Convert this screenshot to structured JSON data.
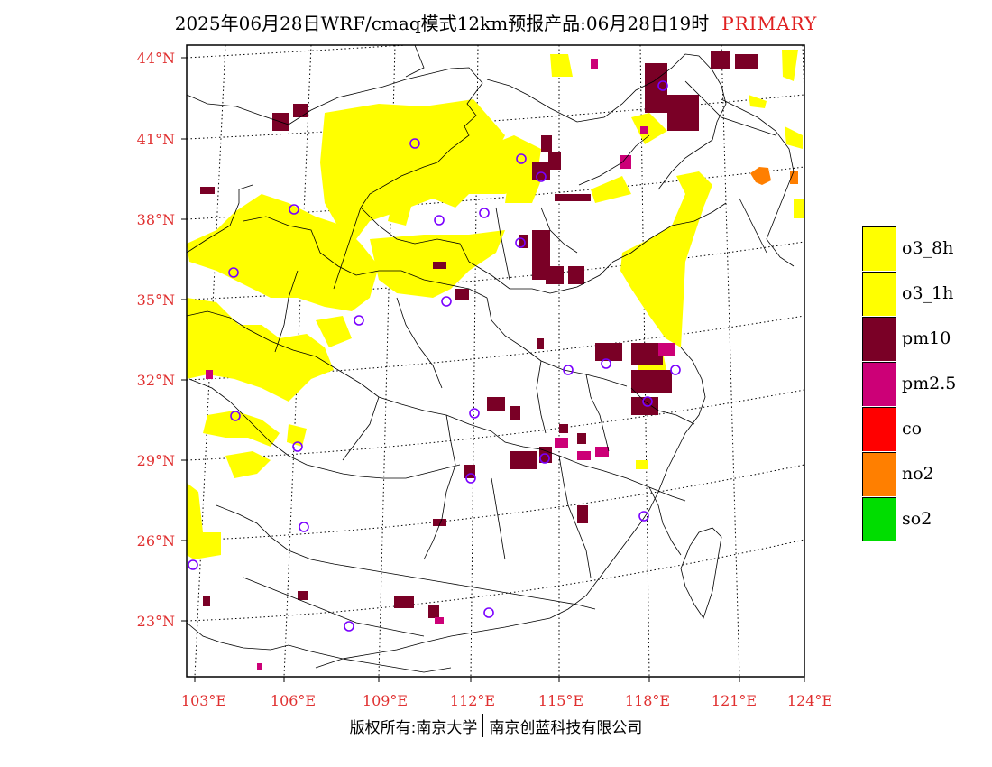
{
  "header": {
    "title": "2025年06月28日WRF/cmaq模式12km预报产品:06月28日19时",
    "tag": "PRIMARY"
  },
  "axes": {
    "lat_labels": [
      "44°N",
      "41°N",
      "38°N",
      "35°N",
      "32°N",
      "29°N",
      "26°N",
      "23°N"
    ],
    "lon_labels": [
      "103°E",
      "106°E",
      "109°E",
      "112°E",
      "115°E",
      "118°E",
      "121°E",
      "124°E"
    ],
    "label_color": "#e03030"
  },
  "legend": {
    "items": [
      {
        "label": "o3_8h",
        "color": "#ffff00"
      },
      {
        "label": "o3_1h",
        "color": "#ffff00"
      },
      {
        "label": "pm10",
        "color": "#7a0026"
      },
      {
        "label": "pm2.5",
        "color": "#cc0077"
      },
      {
        "label": "co",
        "color": "#ff0000"
      },
      {
        "label": "no2",
        "color": "#ff7f00"
      },
      {
        "label": "so2",
        "color": "#00dd00"
      }
    ]
  },
  "footer": {
    "left": "版权所有:南京大学",
    "right": "南京创蓝科技有限公司"
  }
}
